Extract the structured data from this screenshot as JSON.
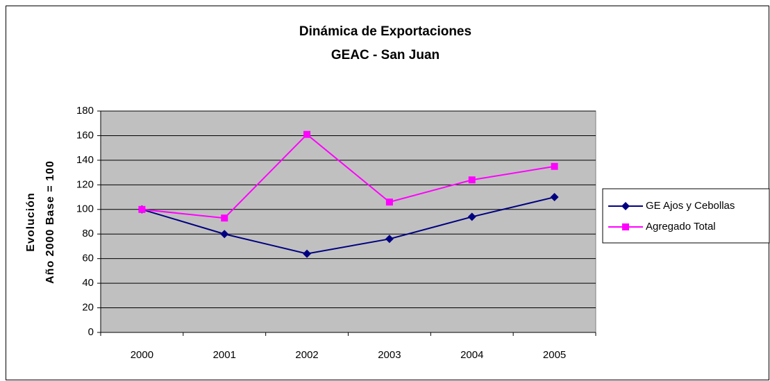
{
  "chart_data": {
    "type": "line",
    "title": [
      "Dinámica de Exportaciones",
      "GEAC - San Juan"
    ],
    "y_label": [
      "Evolución",
      "Año 2000 Base = 100"
    ],
    "categories": [
      "2000",
      "2001",
      "2002",
      "2003",
      "2004",
      "2005"
    ],
    "series": [
      {
        "name": "GE Ajos y Cebollas",
        "color": "#000080",
        "marker": "diamond",
        "values": [
          100,
          80,
          64,
          76,
          94,
          110
        ]
      },
      {
        "name": "Agregado Total",
        "color": "#ff00ff",
        "marker": "square",
        "values": [
          100,
          93,
          161,
          106,
          124,
          135
        ]
      }
    ],
    "ylim": [
      0,
      180
    ],
    "yticks": [
      0,
      20,
      40,
      60,
      80,
      100,
      120,
      140,
      160,
      180
    ],
    "grid": true,
    "legend": "right"
  }
}
